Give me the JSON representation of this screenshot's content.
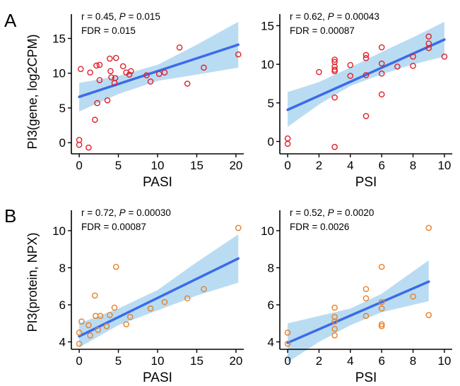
{
  "figure": {
    "panel_labels": [
      "A",
      "B"
    ],
    "row_ylabels": [
      "PI3(gene, log2CPM)",
      "PI3(protein, NPX)"
    ]
  },
  "colors": {
    "fit_line": "#3b6be8",
    "ci_band": "#b9dcf2",
    "points_gene": "#e0202a",
    "points_protein": "#e8802a"
  },
  "chart_data": [
    {
      "type": "scatter",
      "panel": "A",
      "xlabel": "PASI",
      "ylabel": "PI3(gene, log2CPM)",
      "stat_r": "r = 0.45, ",
      "stat_p_label": "P",
      "stat_p": " = 0.015",
      "stat_fdr": "FDR = 0.015",
      "xlim": [
        -1,
        21
      ],
      "ylim": [
        -1.6,
        18.5
      ],
      "xticks": [
        0,
        5,
        10,
        15,
        20
      ],
      "yticks": [
        0,
        5,
        10,
        15
      ],
      "fit": {
        "x0": 0,
        "y0": 6.6,
        "x1": 20.3,
        "y1": 14.1
      },
      "ci": {
        "x": [
          0,
          5,
          10,
          15,
          20.3
        ],
        "lower": [
          4.5,
          7.0,
          8.9,
          9.8,
          10.8
        ],
        "upper": [
          8.6,
          9.6,
          11.2,
          14.1,
          17.4
        ]
      },
      "points": [
        {
          "x": 0,
          "y": 0.4
        },
        {
          "x": 0,
          "y": -0.3
        },
        {
          "x": 0.2,
          "y": 10.6
        },
        {
          "x": 1.2,
          "y": -0.7
        },
        {
          "x": 1.4,
          "y": 10.1
        },
        {
          "x": 2.0,
          "y": 3.3
        },
        {
          "x": 2.2,
          "y": 11.1
        },
        {
          "x": 2.3,
          "y": 5.7
        },
        {
          "x": 2.6,
          "y": 11.2
        },
        {
          "x": 2.6,
          "y": 9.0
        },
        {
          "x": 3.6,
          "y": 6.1
        },
        {
          "x": 3.9,
          "y": 12.1
        },
        {
          "x": 4.0,
          "y": 10.3
        },
        {
          "x": 4.1,
          "y": 9.4
        },
        {
          "x": 4.5,
          "y": 8.6
        },
        {
          "x": 4.6,
          "y": 9.3
        },
        {
          "x": 4.7,
          "y": 12.2
        },
        {
          "x": 5.6,
          "y": 11.0
        },
        {
          "x": 6.0,
          "y": 10.1
        },
        {
          "x": 6.4,
          "y": 9.8
        },
        {
          "x": 6.6,
          "y": 10.3
        },
        {
          "x": 8.6,
          "y": 9.7
        },
        {
          "x": 9.1,
          "y": 8.8
        },
        {
          "x": 10.2,
          "y": 9.9
        },
        {
          "x": 10.9,
          "y": 10.1
        },
        {
          "x": 12.8,
          "y": 13.7
        },
        {
          "x": 13.8,
          "y": 8.5
        },
        {
          "x": 15.9,
          "y": 10.8
        },
        {
          "x": 20.3,
          "y": 12.7
        }
      ]
    },
    {
      "type": "scatter",
      "panel": "A",
      "xlabel": "PSI",
      "ylabel": "",
      "stat_r": "r = 0.62, ",
      "stat_p_label": "P",
      "stat_p": " = 0.00043",
      "stat_fdr": "FDR = 0.00087",
      "xlim": [
        -0.5,
        10.5
      ],
      "ylim": [
        -1.6,
        16.5
      ],
      "xticks": [
        0,
        2,
        4,
        6,
        8,
        10
      ],
      "yticks": [
        0,
        5,
        10,
        15
      ],
      "fit": {
        "x0": 0,
        "y0": 4.1,
        "x1": 10,
        "y1": 13.2
      },
      "ci": {
        "x": [
          0,
          2,
          4,
          6,
          8,
          10
        ],
        "lower": [
          1.9,
          4.8,
          7.2,
          8.7,
          10.0,
          11.0
        ],
        "upper": [
          6.4,
          7.7,
          9.6,
          11.6,
          13.5,
          15.5
        ]
      },
      "points": [
        {
          "x": 0,
          "y": 0.4
        },
        {
          "x": 0,
          "y": -0.3
        },
        {
          "x": 2,
          "y": 9.0
        },
        {
          "x": 3,
          "y": 10.6
        },
        {
          "x": 3,
          "y": 10.3
        },
        {
          "x": 3,
          "y": 9.7
        },
        {
          "x": 3,
          "y": 9.3
        },
        {
          "x": 3,
          "y": 9.1
        },
        {
          "x": 3,
          "y": 5.7
        },
        {
          "x": 3,
          "y": -0.7
        },
        {
          "x": 4,
          "y": 9.9
        },
        {
          "x": 4,
          "y": 8.5
        },
        {
          "x": 5,
          "y": 11.2
        },
        {
          "x": 5,
          "y": 10.8
        },
        {
          "x": 5,
          "y": 8.6
        },
        {
          "x": 5,
          "y": 3.3
        },
        {
          "x": 6,
          "y": 12.2
        },
        {
          "x": 6,
          "y": 10.1
        },
        {
          "x": 6,
          "y": 8.8
        },
        {
          "x": 6,
          "y": 6.1
        },
        {
          "x": 7,
          "y": 9.7
        },
        {
          "x": 8,
          "y": 11.0
        },
        {
          "x": 8,
          "y": 9.8
        },
        {
          "x": 9,
          "y": 13.6
        },
        {
          "x": 9,
          "y": 12.7
        },
        {
          "x": 9,
          "y": 12.1
        },
        {
          "x": 10,
          "y": 11.0
        }
      ]
    },
    {
      "type": "scatter",
      "panel": "B",
      "xlabel": "PASI",
      "ylabel": "PI3(protein, NPX)",
      "stat_r": "r = 0.72, ",
      "stat_p_label": "P",
      "stat_p": " = 0.00030",
      "stat_fdr": "FDR = 0.00087",
      "xlim": [
        -1,
        21
      ],
      "ylim": [
        3.6,
        11.1
      ],
      "xticks": [
        0,
        5,
        10,
        15,
        20
      ],
      "yticks": [
        4,
        6,
        8,
        10
      ],
      "fit": {
        "x0": 0,
        "y0": 4.3,
        "x1": 20.3,
        "y1": 8.5
      },
      "ci": {
        "x": [
          0,
          5,
          10,
          15,
          20.3
        ],
        "lower": [
          3.7,
          4.9,
          5.7,
          6.5,
          7.2
        ],
        "upper": [
          5.0,
          5.8,
          6.8,
          8.3,
          9.8
        ]
      },
      "points": [
        {
          "x": 0,
          "y": 3.9
        },
        {
          "x": 0,
          "y": 4.5
        },
        {
          "x": 0.3,
          "y": 5.1
        },
        {
          "x": 1.2,
          "y": 4.9
        },
        {
          "x": 1.4,
          "y": 4.35
        },
        {
          "x": 2.0,
          "y": 6.5
        },
        {
          "x": 2.1,
          "y": 5.4
        },
        {
          "x": 2.4,
          "y": 4.65
        },
        {
          "x": 2.7,
          "y": 5.4
        },
        {
          "x": 3.5,
          "y": 4.85
        },
        {
          "x": 3.9,
          "y": 5.45
        },
        {
          "x": 4.5,
          "y": 5.85
        },
        {
          "x": 4.7,
          "y": 8.05
        },
        {
          "x": 6.0,
          "y": 4.95
        },
        {
          "x": 6.5,
          "y": 5.35
        },
        {
          "x": 9.1,
          "y": 5.8
        },
        {
          "x": 10.9,
          "y": 6.15
        },
        {
          "x": 13.8,
          "y": 6.35
        },
        {
          "x": 15.9,
          "y": 6.85
        },
        {
          "x": 20.3,
          "y": 10.15
        }
      ]
    },
    {
      "type": "scatter",
      "panel": "B",
      "xlabel": "PSI",
      "ylabel": "",
      "stat_r": "r = 0.52, ",
      "stat_p_label": "P",
      "stat_p": " = 0.0020",
      "stat_fdr": "FDR = 0.0026",
      "xlim": [
        -0.5,
        10.5
      ],
      "ylim": [
        3.6,
        11.1
      ],
      "xticks": [
        0,
        2,
        4,
        6,
        8,
        10
      ],
      "yticks": [
        4,
        6,
        8,
        10
      ],
      "fit": {
        "x0": 0,
        "y0": 3.95,
        "x1": 9,
        "y1": 7.25
      },
      "ci": {
        "x": [
          0,
          2,
          4,
          6,
          8,
          9
        ],
        "lower": [
          2.9,
          4.0,
          4.9,
          5.6,
          6.0,
          6.2
        ],
        "upper": [
          5.0,
          5.4,
          5.8,
          6.6,
          7.8,
          8.4
        ]
      },
      "points": [
        {
          "x": 0,
          "y": 4.5
        },
        {
          "x": 0,
          "y": 3.9
        },
        {
          "x": 3,
          "y": 5.85
        },
        {
          "x": 3,
          "y": 5.35
        },
        {
          "x": 3,
          "y": 5.1
        },
        {
          "x": 3,
          "y": 4.7
        },
        {
          "x": 3,
          "y": 4.35
        },
        {
          "x": 5,
          "y": 6.85
        },
        {
          "x": 5,
          "y": 6.35
        },
        {
          "x": 5,
          "y": 5.4
        },
        {
          "x": 6,
          "y": 8.05
        },
        {
          "x": 6,
          "y": 6.15
        },
        {
          "x": 6,
          "y": 5.8
        },
        {
          "x": 6,
          "y": 4.95
        },
        {
          "x": 6,
          "y": 4.85
        },
        {
          "x": 8,
          "y": 6.45
        },
        {
          "x": 9,
          "y": 10.15
        },
        {
          "x": 9,
          "y": 5.45
        }
      ]
    }
  ]
}
